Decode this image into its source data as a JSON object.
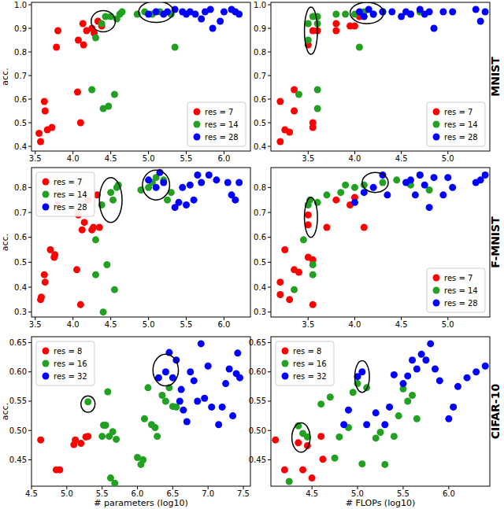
{
  "chart_data": [
    {
      "type": "scatter",
      "y_label": "acc.",
      "legend": "lower right",
      "xlim": [
        3.45,
        6.35
      ],
      "ylim": [
        0.38,
        1.01
      ],
      "xticks": [
        3.5,
        {
          "value": 4,
          "label": "4.0"
        },
        4.5,
        {
          "value": 5,
          "label": "5.0"
        },
        5.5,
        {
          "value": 6,
          "label": "6.0"
        }
      ],
      "yticks": [
        0.4,
        0.5,
        0.6,
        0.7,
        0.8,
        0.9,
        {
          "value": 1,
          "label": "1.0"
        }
      ],
      "series": [
        {
          "name": "res = 7",
          "color": "#ff0000",
          "x": [
            3.55,
            3.57,
            3.62,
            3.63,
            3.66,
            3.72,
            3.78,
            3.8,
            4.06,
            4.07,
            4.1,
            4.13,
            4.14,
            4.18,
            4.25,
            4.28,
            4.33,
            4.38
          ],
          "values": [
            0.455,
            0.42,
            0.59,
            0.55,
            0.47,
            0.48,
            0.82,
            0.89,
            0.63,
            0.85,
            0.5,
            0.92,
            0.83,
            0.89,
            0.9,
            0.88,
            0.93,
            0.91
          ]
        },
        {
          "name": "res = 14",
          "color": "#22a022",
          "x": [
            4.25,
            4.3,
            4.38,
            4.4,
            4.43,
            4.47,
            4.5,
            4.55,
            4.58,
            4.62,
            4.65,
            4.85,
            4.95,
            5.05,
            5.15,
            5.35,
            5.3
          ],
          "values": [
            0.64,
            0.86,
            0.92,
            0.56,
            0.95,
            0.57,
            0.95,
            0.62,
            0.94,
            0.96,
            0.97,
            0.96,
            0.97,
            0.96,
            0.97,
            0.82,
            0.96
          ]
        },
        {
          "name": "res = 28",
          "color": "#0000ff",
          "x": [
            5.0,
            5.1,
            5.2,
            5.25,
            5.35,
            5.45,
            5.55,
            5.62,
            5.7,
            5.82,
            5.85,
            5.95,
            6.0,
            6.1,
            6.15,
            6.2,
            5.5,
            5.75
          ],
          "values": [
            0.96,
            0.97,
            0.96,
            0.97,
            0.98,
            0.97,
            0.97,
            0.96,
            0.94,
            0.98,
            0.9,
            0.93,
            0.97,
            0.98,
            0.97,
            0.96,
            0.96,
            0.97
          ]
        }
      ],
      "highlights": [
        {
          "x": 4.4,
          "y": 0.93,
          "rx": 0.16,
          "ry": 0.045
        },
        {
          "x": 5.1,
          "y": 0.97,
          "rx": 0.23,
          "ry": 0.045
        }
      ]
    },
    {
      "type": "scatter",
      "title": "MNIST",
      "legend": "lower right",
      "xlim": [
        3.1,
        5.45
      ],
      "ylim": [
        0.38,
        1.01
      ],
      "xticks": [
        3.5,
        {
          "value": 4,
          "label": "4.0"
        },
        4.5,
        {
          "value": 5,
          "label": "5.0"
        }
      ],
      "yticks": [
        0.4,
        0.5,
        0.6,
        0.7,
        0.8,
        0.9,
        {
          "value": 1,
          "label": "1.0"
        }
      ],
      "series": [
        {
          "name": "res = 7",
          "color": "#ff0000",
          "x": [
            3.2,
            3.2,
            3.25,
            3.3,
            3.35,
            3.35,
            3.5,
            3.55,
            3.55,
            3.55,
            3.6,
            3.8,
            3.8,
            3.95,
            4.0,
            4.05
          ],
          "values": [
            0.42,
            0.59,
            0.47,
            0.46,
            0.55,
            0.64,
            0.83,
            0.89,
            0.48,
            0.5,
            0.89,
            0.89,
            0.92,
            0.91,
            0.91,
            0.95
          ]
        },
        {
          "name": "res = 14",
          "color": "#22a022",
          "x": [
            3.4,
            3.5,
            3.5,
            3.55,
            3.6,
            3.6,
            3.6,
            3.6,
            3.8,
            3.9,
            4.0,
            4.05,
            4.1,
            4.2,
            4.3,
            4.6,
            4.7
          ],
          "values": [
            0.62,
            0.85,
            0.92,
            0.95,
            0.95,
            0.56,
            0.64,
            0.92,
            0.96,
            0.96,
            0.96,
            0.82,
            0.97,
            0.96,
            0.97,
            0.96,
            0.97
          ]
        },
        {
          "name": "res = 28",
          "color": "#0000ff",
          "x": [
            4.05,
            4.1,
            4.15,
            4.2,
            4.3,
            4.55,
            4.6,
            4.7,
            4.75,
            4.8,
            4.85,
            4.95,
            5.05,
            5.3,
            5.35,
            5.4,
            4.4,
            4.5
          ],
          "values": [
            0.97,
            0.95,
            0.98,
            0.96,
            0.97,
            0.97,
            0.96,
            0.98,
            0.96,
            0.97,
            0.9,
            0.97,
            0.97,
            0.98,
            0.93,
            0.97,
            0.97,
            0.95
          ]
        }
      ],
      "highlights": [
        {
          "x": 3.53,
          "y": 0.89,
          "rx": 0.07,
          "ry": 0.1
        },
        {
          "x": 4.13,
          "y": 0.965,
          "rx": 0.18,
          "ry": 0.045
        }
      ]
    },
    {
      "type": "scatter",
      "y_label": "acc.",
      "legend": "upper left",
      "xlim": [
        3.45,
        6.35
      ],
      "ylim": [
        0.28,
        0.88
      ],
      "xticks": [
        3.5,
        {
          "value": 4,
          "label": "4.0"
        },
        4.5,
        {
          "value": 5,
          "label": "5.0"
        },
        5.5,
        {
          "value": 6,
          "label": "6.0"
        }
      ],
      "yticks": [
        0.3,
        0.4,
        0.5,
        0.6,
        0.7,
        0.8
      ],
      "series": [
        {
          "name": "res = 7",
          "color": "#ff0000",
          "x": [
            3.57,
            3.58,
            3.62,
            3.63,
            3.7,
            3.75,
            3.76,
            3.8,
            4.05,
            4.07,
            4.1,
            4.12,
            4.15,
            4.2,
            4.25,
            4.35,
            4.32,
            4.27
          ],
          "values": [
            0.35,
            0.36,
            0.45,
            0.42,
            0.55,
            0.52,
            0.53,
            0.73,
            0.47,
            0.69,
            0.33,
            0.63,
            0.66,
            0.75,
            0.63,
            0.64,
            0.77,
            0.64
          ]
        },
        {
          "name": "res = 14",
          "color": "#22a022",
          "x": [
            4.3,
            4.3,
            4.38,
            4.4,
            4.45,
            4.5,
            4.53,
            4.55,
            4.58,
            4.6,
            4.9,
            5.0,
            5.05,
            5.1,
            5.2,
            5.3,
            5.25
          ],
          "values": [
            0.59,
            0.45,
            0.73,
            0.3,
            0.49,
            0.78,
            0.75,
            0.39,
            0.8,
            0.81,
            0.79,
            0.8,
            0.82,
            0.84,
            0.83,
            0.78,
            0.75
          ]
        },
        {
          "name": "res = 28",
          "color": "#0000ff",
          "x": [
            5.0,
            5.1,
            5.15,
            5.2,
            5.35,
            5.4,
            5.45,
            5.5,
            5.6,
            5.65,
            5.7,
            5.8,
            5.9,
            6.05,
            6.1,
            6.15,
            6.2,
            5.55
          ],
          "values": [
            0.83,
            0.8,
            0.86,
            0.82,
            0.72,
            0.74,
            0.8,
            0.73,
            0.75,
            0.85,
            0.82,
            0.85,
            0.83,
            0.82,
            0.77,
            0.75,
            0.82,
            0.81
          ]
        }
      ],
      "highlights": [
        {
          "x": 4.5,
          "y": 0.75,
          "rx": 0.15,
          "ry": 0.09
        },
        {
          "x": 5.1,
          "y": 0.81,
          "rx": 0.18,
          "ry": 0.06
        }
      ]
    },
    {
      "type": "scatter",
      "title": "F-MNIST",
      "legend": "lower right",
      "xlim": [
        3.1,
        5.45
      ],
      "ylim": [
        0.28,
        0.88
      ],
      "xticks": [
        3.5,
        {
          "value": 4,
          "label": "4.0"
        },
        4.5,
        {
          "value": 5,
          "label": "5.0"
        }
      ],
      "yticks": [
        0.3,
        0.4,
        0.5,
        0.6,
        0.7,
        0.8
      ],
      "series": [
        {
          "name": "res = 7",
          "color": "#ff0000",
          "x": [
            3.2,
            3.2,
            3.25,
            3.3,
            3.35,
            3.4,
            3.5,
            3.5,
            3.5,
            3.55,
            3.55,
            3.7,
            3.8,
            3.95,
            4.0,
            4.1
          ],
          "values": [
            0.42,
            0.37,
            0.55,
            0.35,
            0.47,
            0.46,
            0.69,
            0.65,
            0.52,
            0.33,
            0.51,
            0.64,
            0.75,
            0.73,
            0.76,
            0.64
          ]
        },
        {
          "name": "res = 14",
          "color": "#22a022",
          "x": [
            3.35,
            3.45,
            3.5,
            3.52,
            3.55,
            3.55,
            3.6,
            3.7,
            3.85,
            3.9,
            4.0,
            4.1,
            4.3,
            4.45,
            4.6,
            4.7,
            4.8
          ],
          "values": [
            0.39,
            0.59,
            0.73,
            0.75,
            0.45,
            0.49,
            0.74,
            0.77,
            0.78,
            0.81,
            0.8,
            0.81,
            0.82,
            0.83,
            0.81,
            0.85,
            0.79
          ]
        },
        {
          "name": "res = 28",
          "color": "#0000ff",
          "x": [
            4.0,
            4.1,
            4.2,
            4.3,
            4.55,
            4.6,
            4.65,
            4.7,
            4.8,
            4.85,
            4.95,
            5.0,
            5.3,
            5.35,
            5.4,
            4.35,
            4.75,
            5.05
          ],
          "values": [
            0.74,
            0.78,
            0.8,
            0.85,
            0.82,
            0.83,
            0.77,
            0.85,
            0.72,
            0.84,
            0.77,
            0.84,
            0.82,
            0.83,
            0.85,
            0.77,
            0.81,
            0.8
          ]
        }
      ],
      "highlights": [
        {
          "x": 3.53,
          "y": 0.68,
          "rx": 0.07,
          "ry": 0.08
        },
        {
          "x": 4.22,
          "y": 0.82,
          "rx": 0.14,
          "ry": 0.04
        }
      ]
    },
    {
      "type": "scatter",
      "y_label": "acc.",
      "x_label": "# parameters (log10)",
      "legend": "upper left",
      "xlim": [
        4.5,
        7.6
      ],
      "ylim": [
        0.405,
        0.66
      ],
      "xticks": [
        4.5,
        {
          "value": 5,
          "label": "5.0"
        },
        5.5,
        {
          "value": 6,
          "label": "6.0"
        },
        6.5,
        {
          "value": 7,
          "label": "7.0"
        },
        7.5
      ],
      "yticks": [
        0.45,
        {
          "value": 0.5,
          "label": "0.50"
        },
        0.55,
        {
          "value": 0.6,
          "label": "0.60"
        },
        0.65
      ],
      "series": [
        {
          "name": "res = 8",
          "color": "#ff0000",
          "x": [
            4.63,
            4.85,
            4.9,
            5.1,
            5.12,
            5.2,
            5.27,
            5.3
          ],
          "values": [
            0.484,
            0.433,
            0.433,
            0.476,
            0.484,
            0.478,
            0.489,
            0.49
          ]
        },
        {
          "name": "res = 16",
          "color": "#22a022",
          "x": [
            5.3,
            5.5,
            5.52,
            5.55,
            5.58,
            5.6,
            5.62,
            5.65,
            5.68,
            5.7,
            6.0,
            6.05,
            6.08,
            6.1,
            6.15,
            6.2,
            6.25,
            6.28,
            6.35,
            6.45,
            6.5,
            6.55,
            6.4
          ],
          "values": [
            0.549,
            0.49,
            0.509,
            0.509,
            0.566,
            0.49,
            0.419,
            0.498,
            0.41,
            0.485,
            0.454,
            0.442,
            0.45,
            0.52,
            0.573,
            0.51,
            0.505,
            0.49,
            0.56,
            0.573,
            0.541,
            0.54,
            0.55
          ]
        },
        {
          "name": "res = 32",
          "color": "#0000ff",
          "x": [
            6.4,
            6.45,
            6.5,
            6.55,
            6.6,
            6.62,
            6.65,
            6.7,
            6.75,
            6.8,
            6.9,
            6.95,
            7.0,
            7.05,
            7.15,
            7.2,
            7.25,
            7.3,
            7.35,
            7.4,
            7.45,
            7.42,
            6.3,
            6.85
          ],
          "values": [
            0.6,
            0.633,
            0.59,
            0.62,
            0.55,
            0.57,
            0.535,
            0.515,
            0.6,
            0.585,
            0.648,
            0.555,
            0.61,
            0.54,
            0.51,
            0.54,
            0.58,
            0.605,
            0.525,
            0.597,
            0.59,
            0.632,
            0.59,
            0.55
          ]
        }
      ],
      "highlights": [
        {
          "x": 5.3,
          "y": 0.545,
          "rx": 0.1,
          "ry": 0.014
        },
        {
          "x": 6.4,
          "y": 0.603,
          "rx": 0.18,
          "ry": 0.027
        }
      ]
    },
    {
      "type": "scatter",
      "title": "CIFAR-10",
      "x_label": "# FLOPs (log10)",
      "legend": "upper left",
      "xlim": [
        4.05,
        6.45
      ],
      "ylim": [
        0.405,
        0.66
      ],
      "xticks": [
        4.5,
        {
          "value": 5,
          "label": "5.0"
        },
        5.5,
        {
          "value": 6,
          "label": "6.0"
        }
      ],
      "yticks": [
        0.45,
        {
          "value": 0.5,
          "label": "0.50"
        },
        0.55,
        {
          "value": 0.6,
          "label": "0.60"
        },
        0.65
      ],
      "series": [
        {
          "name": "res = 8",
          "color": "#ff0000",
          "x": [
            4.1,
            4.2,
            4.35,
            4.4,
            4.45,
            4.5,
            4.6,
            4.62
          ],
          "values": [
            0.484,
            0.433,
            0.479,
            0.433,
            0.474,
            0.419,
            0.49,
            0.451
          ]
        },
        {
          "name": "res = 16",
          "color": "#22a022",
          "x": [
            4.25,
            4.35,
            4.4,
            4.45,
            4.6,
            4.7,
            4.75,
            4.8,
            4.9,
            4.95,
            5.0,
            5.05,
            5.1,
            5.2,
            5.25,
            5.3,
            5.4,
            5.45,
            5.5,
            5.55,
            5.6,
            5.65
          ],
          "values": [
            0.413,
            0.508,
            0.495,
            0.489,
            0.545,
            0.557,
            0.453,
            0.489,
            0.505,
            0.565,
            0.58,
            0.443,
            0.573,
            0.487,
            0.497,
            0.442,
            0.49,
            0.525,
            0.571,
            0.55,
            0.56,
            0.52
          ]
        },
        {
          "name": "res = 32",
          "color": "#0000ff",
          "x": [
            4.85,
            4.9,
            5.0,
            5.05,
            5.1,
            5.2,
            5.3,
            5.35,
            5.4,
            5.5,
            5.55,
            5.6,
            5.65,
            5.7,
            5.75,
            5.8,
            5.85,
            5.9,
            6.0,
            6.05,
            6.1,
            6.2,
            6.3,
            6.4
          ],
          "values": [
            0.51,
            0.535,
            0.592,
            0.6,
            0.51,
            0.53,
            0.51,
            0.54,
            0.595,
            0.58,
            0.593,
            0.62,
            0.605,
            0.63,
            0.62,
            0.648,
            0.605,
            0.585,
            0.52,
            0.54,
            0.575,
            0.59,
            0.6,
            0.61
          ]
        }
      ],
      "highlights": [
        {
          "x": 4.38,
          "y": 0.488,
          "rx": 0.1,
          "ry": 0.025
        },
        {
          "x": 5.05,
          "y": 0.592,
          "rx": 0.08,
          "ry": 0.027
        }
      ]
    }
  ]
}
